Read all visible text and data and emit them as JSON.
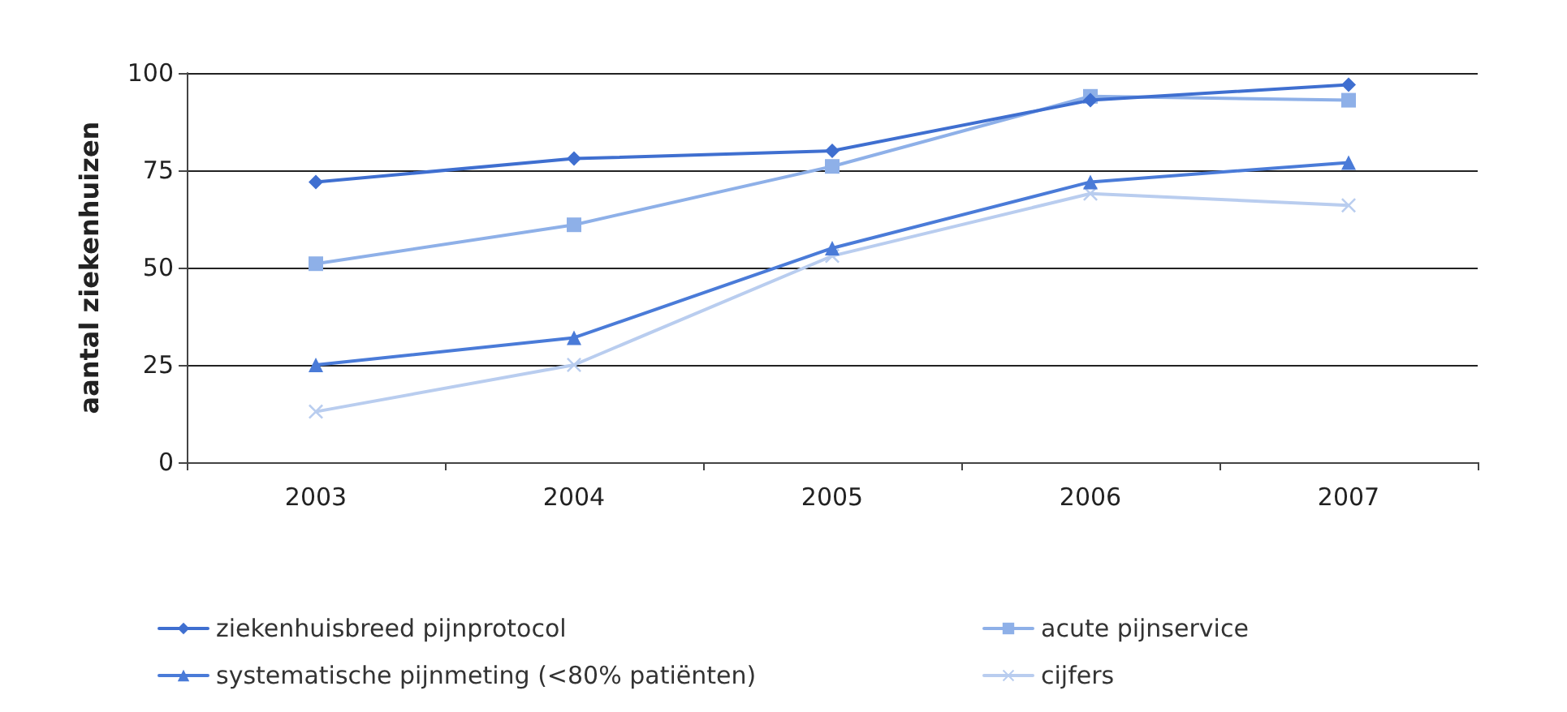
{
  "chart_data": {
    "type": "line",
    "ylabel": "aantal ziekenhuizen",
    "categories": [
      "2003",
      "2004",
      "2005",
      "2006",
      "2007"
    ],
    "series": [
      {
        "name": "ziekenhuisbreed pijnprotocol",
        "color": "#3f6fd0",
        "marker": "diamond",
        "values": [
          72,
          78,
          80,
          93,
          97
        ]
      },
      {
        "name": "acute pijnservice",
        "color": "#8eb0e8",
        "marker": "square",
        "values": [
          51,
          61,
          76,
          94,
          93
        ]
      },
      {
        "name": "systematische pijnmeting (<80% patiënten)",
        "color": "#4a7bd8",
        "marker": "triangle",
        "values": [
          25,
          32,
          55,
          72,
          77
        ]
      },
      {
        "name": "cijfers",
        "color": "#b9cdef",
        "marker": "cross",
        "values": [
          13,
          25,
          53,
          69,
          66
        ]
      }
    ],
    "ylim": [
      0,
      100
    ],
    "yticks": [
      0,
      25,
      50,
      75,
      100
    ],
    "grid": "y",
    "legend": "bottom",
    "line_style": "solid"
  }
}
